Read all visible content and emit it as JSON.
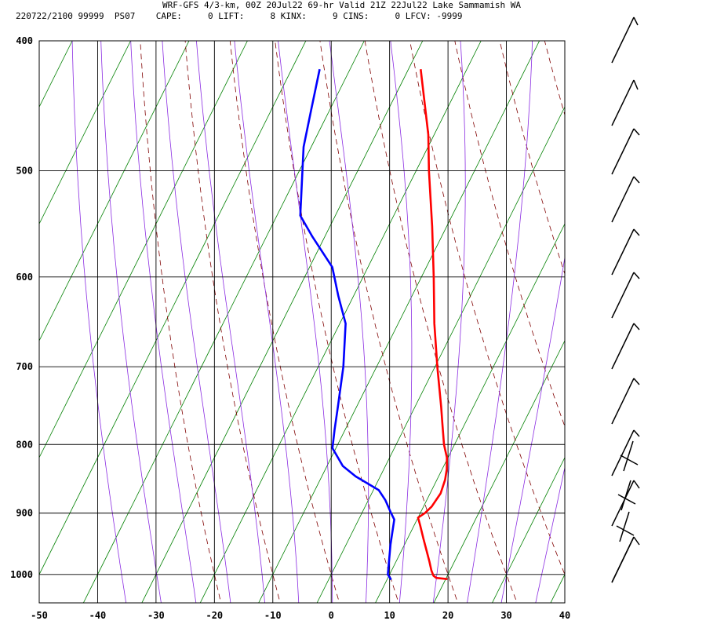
{
  "header": {
    "title": "WRF-GFS 4/3-km, 00Z 20Jul22 69-hr Valid 21Z 22Jul22 Lake Sammamish WA",
    "info": "220722/2100 99999  PS07    CAPE:     0 LIFT:     8 KINX:     9 CINS:     0 LFCV: -9999"
  },
  "colors": {
    "temperature": "#ff0000",
    "dewpoint": "#0000ff",
    "isotherm": "#008000",
    "dry_adiabat": "#800000",
    "moist_adiabat": "#8a2be2",
    "grid": "#000000"
  },
  "chart_data": {
    "type": "line",
    "skew_t": true,
    "x_axis": {
      "units": "temperature C",
      "range": [
        -50,
        40
      ],
      "ticks": [
        -50,
        -40,
        -30,
        -20,
        -10,
        0,
        10,
        20,
        30,
        40
      ]
    },
    "y_axis": {
      "units": "pressure hPa",
      "scale": "log",
      "range": [
        1050,
        400
      ],
      "ticks": [
        400,
        500,
        600,
        700,
        800,
        900,
        1000
      ]
    },
    "grid": true,
    "series": [
      {
        "role": "temperature",
        "points": [
          {
            "p": 1008,
            "t": 20.3
          },
          {
            "p": 1006,
            "t": 18.3
          },
          {
            "p": 1002,
            "t": 17.6
          },
          {
            "p": 993,
            "t": 16.8
          },
          {
            "p": 978,
            "t": 15.7
          },
          {
            "p": 960,
            "t": 14.3
          },
          {
            "p": 940,
            "t": 12.7
          },
          {
            "p": 920,
            "t": 11.1
          },
          {
            "p": 907,
            "t": 10.0
          },
          {
            "p": 900,
            "t": 10.8
          },
          {
            "p": 890,
            "t": 11.4
          },
          {
            "p": 870,
            "t": 11.8
          },
          {
            "p": 850,
            "t": 11.4
          },
          {
            "p": 835,
            "t": 10.8
          },
          {
            "p": 818,
            "t": 9.8
          },
          {
            "p": 800,
            "t": 8.2
          },
          {
            "p": 770,
            "t": 6.0
          },
          {
            "p": 750,
            "t": 4.5
          },
          {
            "p": 700,
            "t": 0.4
          },
          {
            "p": 650,
            "t": -3.8
          },
          {
            "p": 600,
            "t": -7.9
          },
          {
            "p": 550,
            "t": -12.5
          },
          {
            "p": 500,
            "t": -17.8
          },
          {
            "p": 470,
            "t": -21.0
          },
          {
            "p": 420,
            "t": -27.9
          }
        ]
      },
      {
        "role": "dewpoint",
        "points": [
          {
            "p": 1009,
            "t": 10.7
          },
          {
            "p": 1000,
            "t": 9.7
          },
          {
            "p": 950,
            "t": 7.6
          },
          {
            "p": 910,
            "t": 6.1
          },
          {
            "p": 900,
            "t": 5.0
          },
          {
            "p": 880,
            "t": 2.9
          },
          {
            "p": 865,
            "t": 0.9
          },
          {
            "p": 845,
            "t": -4.2
          },
          {
            "p": 830,
            "t": -7.3
          },
          {
            "p": 805,
            "t": -10.6
          },
          {
            "p": 780,
            "t": -11.8
          },
          {
            "p": 750,
            "t": -13.2
          },
          {
            "p": 700,
            "t": -15.7
          },
          {
            "p": 650,
            "t": -19.0
          },
          {
            "p": 620,
            "t": -22.6
          },
          {
            "p": 590,
            "t": -26.1
          },
          {
            "p": 560,
            "t": -32.1
          },
          {
            "p": 540,
            "t": -36.0
          },
          {
            "p": 480,
            "t": -41.3
          },
          {
            "p": 450,
            "t": -43.2
          },
          {
            "p": 420,
            "t": -45.2
          }
        ]
      }
    ]
  }
}
